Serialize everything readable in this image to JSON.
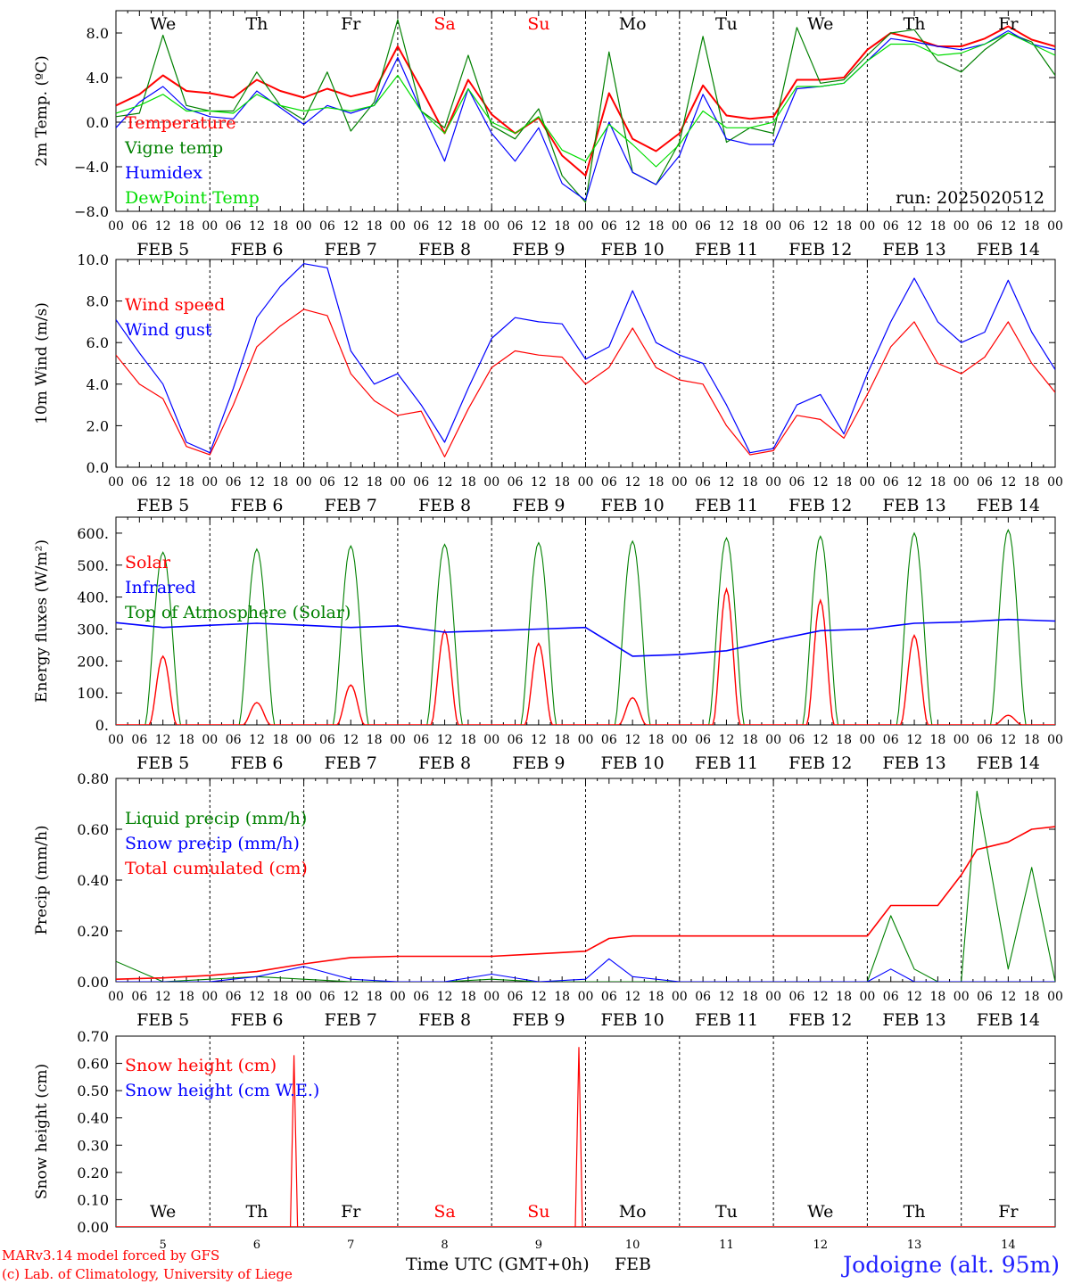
{
  "days": [
    "We",
    "Th",
    "Fr",
    "Sa",
    "Su",
    "Mo",
    "Tu",
    "We",
    "Th",
    "Fr"
  ],
  "day_colors": [
    "#000000",
    "#000000",
    "#000000",
    "#ff0000",
    "#ff0000",
    "#000000",
    "#000000",
    "#000000",
    "#000000",
    "#000000"
  ],
  "hour_ticks": [
    "00",
    "06",
    "12",
    "18"
  ],
  "hour_end_label": "00",
  "date_labels": [
    "FEB  5",
    "FEB  6",
    "FEB  7",
    "FEB  8",
    "FEB  9",
    "FEB 10",
    "FEB 11",
    "FEB 12",
    "FEB 13",
    "FEB 14"
  ],
  "bottom_day_numbers": [
    "5",
    "6",
    "7",
    "8",
    "9",
    "10",
    "11",
    "12",
    "13",
    "14"
  ],
  "footer": {
    "xlabel": "Time UTC (GMT+0h)",
    "month": "FEB",
    "credit_1": "MARv3.14 model forced by GFS",
    "credit_2": "(c) Lab. of Climatology, University of Liege",
    "station": "Jodoigne (alt. 95m)"
  },
  "colors": {
    "red": "#ff0000",
    "blue": "#0000ff",
    "green": "#008000",
    "lightgreen": "#00dd00",
    "station": "#2020ff"
  },
  "chart_data": [
    {
      "type": "line",
      "ylabel": "2m Temp. (ºC)",
      "ylim": [
        -8,
        10
      ],
      "yticks": [
        "8.0",
        "4.0",
        "0.0",
        "−4.0",
        "−8.0"
      ],
      "ytick_values": [
        8,
        4,
        0,
        -4,
        -8
      ],
      "ref_line": 0,
      "annotation": "run: 2025020512",
      "x_hours": [
        0,
        6,
        12,
        18,
        24,
        30,
        36,
        42,
        48,
        54,
        60,
        66,
        72,
        78,
        84,
        90,
        96,
        102,
        108,
        114,
        120,
        126,
        132,
        138,
        144,
        150,
        156,
        162,
        168,
        174,
        180,
        186,
        192,
        198,
        204,
        210,
        216,
        222,
        228,
        234,
        240
      ],
      "series": [
        {
          "name": "Temperature",
          "color": "red",
          "values": [
            1.5,
            2.5,
            4.2,
            2.8,
            2.6,
            2.2,
            3.8,
            2.8,
            2.2,
            3.0,
            2.3,
            2.8,
            6.8,
            3.0,
            -1.0,
            3.8,
            0.7,
            -1.0,
            0.4,
            -3.0,
            -4.8,
            2.6,
            -1.5,
            -2.6,
            -1.0,
            3.3,
            0.6,
            0.3,
            0.5,
            3.8,
            3.8,
            4.0,
            6.5,
            8.0,
            7.5,
            6.8,
            6.8,
            7.5,
            8.6,
            7.4,
            6.8
          ]
        },
        {
          "name": "Vigne temp",
          "color": "green",
          "values": [
            0.5,
            0.8,
            7.8,
            1.5,
            1.0,
            1.0,
            4.5,
            1.5,
            0.2,
            4.5,
            -0.8,
            1.8,
            9.2,
            1.0,
            -0.5,
            6.0,
            -0.3,
            -1.5,
            1.2,
            -4.8,
            -7.2,
            6.3,
            -4.5,
            -5.6,
            -1.8,
            7.7,
            -1.8,
            -0.5,
            -1.0,
            8.5,
            3.5,
            3.8,
            6.0,
            8.0,
            8.3,
            5.5,
            4.5,
            6.5,
            8.0,
            7.2,
            4.2
          ]
        },
        {
          "name": "Humidex",
          "color": "blue",
          "values": [
            -0.5,
            1.8,
            3.2,
            1.2,
            0.5,
            0.3,
            2.8,
            1.3,
            -0.2,
            1.5,
            0.8,
            1.5,
            5.8,
            1.0,
            -3.5,
            3.0,
            -1.0,
            -3.5,
            -0.5,
            -5.5,
            -7.0,
            0.0,
            -4.5,
            -5.6,
            -3.0,
            2.5,
            -1.5,
            -2.0,
            -2.0,
            3.0,
            3.2,
            3.5,
            5.5,
            7.5,
            7.2,
            6.8,
            6.5,
            7.0,
            8.2,
            7.0,
            6.5
          ]
        },
        {
          "name": "DewPoint Temp",
          "color": "lightgreen",
          "values": [
            0.8,
            1.5,
            2.5,
            1.0,
            1.0,
            0.8,
            2.5,
            1.5,
            1.0,
            1.3,
            1.0,
            1.5,
            4.2,
            1.0,
            -1.0,
            3.0,
            0.0,
            -1.0,
            0.5,
            -2.5,
            -3.5,
            -0.2,
            -2.0,
            -4.0,
            -2.0,
            1.0,
            -0.5,
            -0.5,
            0.0,
            3.2,
            3.2,
            3.5,
            5.5,
            7.0,
            7.0,
            6.0,
            6.2,
            7.0,
            8.0,
            7.0,
            6.0
          ]
        }
      ]
    },
    {
      "type": "line",
      "ylabel": "10m Wind (m/s)",
      "ylim": [
        0,
        10
      ],
      "yticks": [
        "10.0",
        "8.0",
        "6.0",
        "4.0",
        "2.0",
        "0.0"
      ],
      "ytick_values": [
        10,
        8,
        6,
        4,
        2,
        0
      ],
      "ref_line": 5,
      "x_hours": [
        0,
        6,
        12,
        18,
        24,
        30,
        36,
        42,
        48,
        54,
        60,
        66,
        72,
        78,
        84,
        90,
        96,
        102,
        108,
        114,
        120,
        126,
        132,
        138,
        144,
        150,
        156,
        162,
        168,
        174,
        180,
        186,
        192,
        198,
        204,
        210,
        216,
        222,
        228,
        234,
        240
      ],
      "series": [
        {
          "name": "Wind speed",
          "color": "red",
          "values": [
            5.4,
            4.0,
            3.3,
            1.0,
            0.6,
            3.0,
            5.8,
            6.8,
            7.6,
            7.3,
            4.5,
            3.2,
            2.5,
            2.7,
            0.5,
            2.8,
            4.8,
            5.6,
            5.4,
            5.3,
            4.0,
            4.8,
            6.7,
            4.8,
            4.2,
            4.0,
            2.0,
            0.6,
            0.8,
            2.5,
            2.3,
            1.4,
            3.5,
            5.8,
            7.0,
            5.0,
            4.5,
            5.3,
            7.0,
            5.0,
            3.6
          ]
        },
        {
          "name": "Wind gust",
          "color": "blue",
          "values": [
            7.1,
            5.5,
            4.0,
            1.2,
            0.7,
            3.8,
            7.2,
            8.7,
            9.8,
            9.6,
            5.6,
            4.0,
            4.5,
            3.0,
            1.2,
            3.8,
            6.2,
            7.2,
            7.0,
            6.9,
            5.2,
            5.8,
            8.5,
            6.0,
            5.4,
            5.0,
            3.0,
            0.7,
            0.9,
            3.0,
            3.5,
            1.6,
            4.5,
            7.0,
            9.1,
            7.0,
            6.0,
            6.5,
            9.0,
            6.5,
            4.7
          ]
        }
      ]
    },
    {
      "type": "line",
      "ylabel": "Energy fluxes (W/m²)",
      "ylim": [
        0,
        650
      ],
      "yticks": [
        "600.",
        "500.",
        "400.",
        "300.",
        "200.",
        "100.",
        "0."
      ],
      "ytick_values": [
        600,
        500,
        400,
        300,
        200,
        100,
        0
      ],
      "bells": {
        "Solar": [
          215,
          70,
          125,
          295,
          255,
          85,
          425,
          390,
          280,
          30
        ],
        "Top of Atmosphere (Solar)": [
          540,
          550,
          560,
          565,
          570,
          575,
          585,
          590,
          600,
          610
        ]
      },
      "infrared_x_hours": [
        0,
        12,
        24,
        36,
        48,
        60,
        72,
        84,
        96,
        108,
        120,
        132,
        144,
        156,
        168,
        180,
        192,
        204,
        216,
        228,
        240
      ],
      "infrared_values": [
        320,
        305,
        312,
        318,
        312,
        305,
        310,
        290,
        295,
        300,
        305,
        215,
        220,
        232,
        265,
        295,
        300,
        318,
        322,
        330,
        325
      ],
      "series_names": [
        "Solar",
        "Infrared",
        "Top of Atmosphere (Solar)"
      ],
      "series_colors": [
        "red",
        "blue",
        "green"
      ]
    },
    {
      "type": "line",
      "ylabel": "Precip (mm/h)",
      "ylim": [
        0,
        0.8
      ],
      "yticks": [
        "0.80",
        "0.60",
        "0.40",
        "0.20",
        "0.00"
      ],
      "ytick_values": [
        0.8,
        0.6,
        0.4,
        0.2,
        0.0
      ],
      "x_hours": [
        0,
        12,
        24,
        36,
        48,
        60,
        72,
        84,
        96,
        108,
        120,
        126,
        132,
        144,
        156,
        168,
        180,
        192,
        198,
        204,
        210,
        216,
        220,
        228,
        234,
        240
      ],
      "series": [
        {
          "name": "Liquid precip (mm/h)",
          "color": "green",
          "values": [
            0.08,
            0.0,
            0.01,
            0.02,
            0.01,
            0.0,
            0.0,
            0.0,
            0.01,
            0.0,
            0.0,
            0.0,
            0.0,
            0.0,
            0.0,
            0.0,
            0.0,
            0.0,
            0.26,
            0.05,
            0.0,
            0.0,
            0.75,
            0.05,
            0.45,
            0.0
          ]
        },
        {
          "name": "Snow precip (mm/h)",
          "color": "blue",
          "values": [
            0.0,
            0.0,
            0.0,
            0.02,
            0.06,
            0.01,
            0.0,
            0.0,
            0.03,
            0.0,
            0.01,
            0.09,
            0.02,
            0.0,
            0.0,
            0.0,
            0.0,
            0.0,
            0.05,
            0.0,
            0.0,
            0.0,
            0.0,
            0.0,
            0.0,
            0.0
          ]
        },
        {
          "name": "Total cumulated (cm)",
          "color": "red",
          "values": [
            0.01,
            0.015,
            0.025,
            0.04,
            0.07,
            0.095,
            0.1,
            0.1,
            0.1,
            0.11,
            0.12,
            0.17,
            0.18,
            0.18,
            0.18,
            0.18,
            0.18,
            0.18,
            0.3,
            0.3,
            0.3,
            0.42,
            0.52,
            0.55,
            0.6,
            0.61
          ]
        }
      ]
    },
    {
      "type": "line",
      "ylabel": "Snow height (cm)",
      "ylim": [
        0,
        0.7
      ],
      "yticks": [
        "0.70",
        "0.60",
        "0.50",
        "0.40",
        "0.30",
        "0.20",
        "0.10",
        "0.00"
      ],
      "ytick_values": [
        0.7,
        0.6,
        0.5,
        0.4,
        0.3,
        0.2,
        0.1,
        0.0
      ],
      "x_hours": [
        0,
        45,
        46,
        47,
        48,
        240
      ],
      "series": [
        {
          "name": "Snow height (cm)",
          "color": "red",
          "spikes": [
            {
              "hour": 45.5,
              "value": 0.63
            },
            {
              "hour": 118.3,
              "value": 0.66
            }
          ]
        },
        {
          "name": "Snow height (cm W.E.)",
          "color": "blue",
          "spikes": []
        }
      ]
    }
  ]
}
